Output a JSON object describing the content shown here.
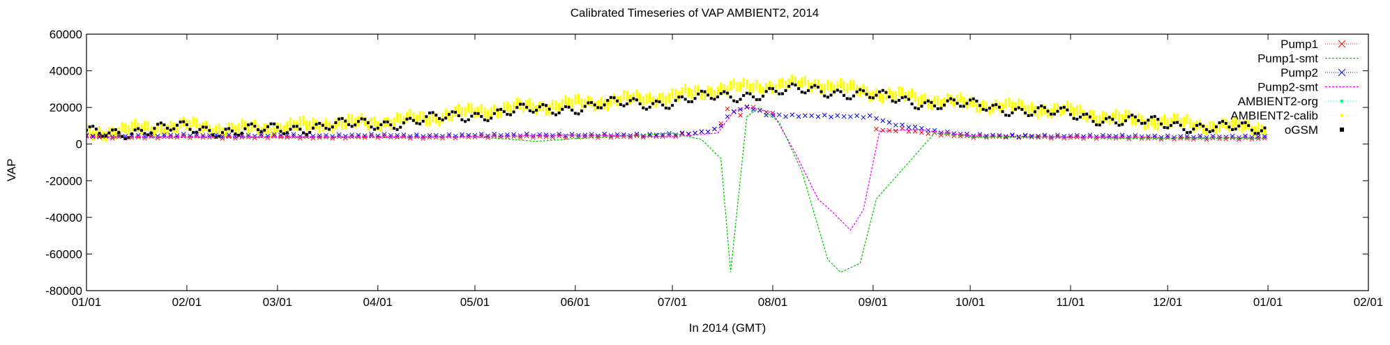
{
  "chart_data": {
    "type": "line",
    "title": "Calibrated Timeseries of VAP AMBIENT2, 2014",
    "xlabel": "In 2014 (GMT)",
    "ylabel": "VAP",
    "xlim": [
      "2014-01-01",
      "2015-02-01"
    ],
    "ylim": [
      -80000,
      60000
    ],
    "grid": false,
    "legend_position": "top-right",
    "x_ticks": [
      "01/01",
      "02/01",
      "03/01",
      "04/01",
      "05/01",
      "06/01",
      "07/01",
      "08/01",
      "09/01",
      "10/01",
      "11/01",
      "12/01",
      "01/01",
      "02/01"
    ],
    "y_ticks": [
      "60000",
      "40000",
      "20000",
      "0",
      "-20000",
      "-40000",
      "-60000",
      "-80000"
    ],
    "series": [
      {
        "name": "Pump1",
        "color": "#ff0000",
        "marker": "x",
        "x": [
          "2014-01-01",
          "2014-01-15",
          "2014-02-01",
          "2014-02-15",
          "2014-03-01",
          "2014-03-15",
          "2014-04-01",
          "2014-04-15",
          "2014-05-01",
          "2014-05-15",
          "2014-06-01",
          "2014-06-15",
          "2014-07-01",
          "2014-07-08",
          "2014-07-15",
          "2014-07-18",
          "2014-07-22",
          "2014-07-25",
          "2014-07-28",
          "2014-08-01",
          "2014-08-15",
          "2014-09-01",
          "2014-09-05",
          "2014-09-10",
          "2014-09-15",
          "2014-10-01",
          "2014-10-15",
          "2014-11-01",
          "2014-11-15",
          "2014-12-01",
          "2014-12-15",
          "2014-12-31"
        ],
        "y": [
          4000,
          3500,
          4000,
          3500,
          4000,
          3500,
          4000,
          3500,
          4000,
          4000,
          4000,
          4000,
          4500,
          6000,
          8000,
          19000,
          16000,
          22000,
          18000,
          17000,
          null,
          9000,
          7000,
          8000,
          6500,
          4000,
          4000,
          3500,
          3500,
          3000,
          3000,
          3000
        ]
      },
      {
        "name": "Pump1-smt",
        "color": "#00cc00",
        "marker": "none",
        "x": [
          "2014-01-01",
          "2014-02-01",
          "2014-03-01",
          "2014-04-01",
          "2014-05-01",
          "2014-05-20",
          "2014-06-01",
          "2014-06-20",
          "2014-07-01",
          "2014-07-10",
          "2014-07-16",
          "2014-07-19",
          "2014-07-24",
          "2014-07-28",
          "2014-08-03",
          "2014-08-10",
          "2014-08-18",
          "2014-08-22",
          "2014-08-28",
          "2014-09-02",
          "2014-09-20",
          "2014-10-01",
          "2014-11-01",
          "2014-12-01",
          "2014-12-31"
        ],
        "y": [
          3500,
          3500,
          3500,
          3500,
          4000,
          1500,
          3000,
          5000,
          6000,
          2500,
          -8000,
          -70000,
          15000,
          20000,
          12000,
          -15000,
          -63000,
          -70000,
          -65000,
          -30000,
          6000,
          4000,
          3500,
          3000,
          3000
        ]
      },
      {
        "name": "Pump2",
        "color": "#0000ff",
        "marker": "x",
        "x": [
          "2014-01-01",
          "2014-01-15",
          "2014-02-01",
          "2014-02-15",
          "2014-03-01",
          "2014-03-15",
          "2014-04-01",
          "2014-04-15",
          "2014-05-01",
          "2014-05-15",
          "2014-06-01",
          "2014-06-15",
          "2014-06-25",
          "2014-07-08",
          "2014-07-15",
          "2014-07-19",
          "2014-07-23",
          "2014-07-27",
          "2014-07-30",
          "2014-08-05",
          "2014-09-01",
          "2014-09-05",
          "2014-09-10",
          "2014-09-15",
          "2014-09-20",
          "2014-10-01",
          "2014-10-15",
          "2014-11-01",
          "2014-11-15",
          "2014-12-01",
          "2014-12-15",
          "2014-12-31"
        ],
        "y": [
          4500,
          4500,
          5000,
          4500,
          5000,
          4500,
          5000,
          4500,
          5000,
          5000,
          5000,
          5000,
          5000,
          6000,
          8000,
          17000,
          20000,
          19000,
          16000,
          15500,
          15000,
          12000,
          10000,
          9000,
          7000,
          5000,
          4500,
          4500,
          4500,
          4000,
          4000,
          4000
        ]
      },
      {
        "name": "Pump2-smt",
        "color": "#ff00ff",
        "marker": "none",
        "x": [
          "2014-01-01",
          "2014-02-01",
          "2014-03-01",
          "2014-04-01",
          "2014-05-01",
          "2014-06-01",
          "2014-07-01",
          "2014-07-15",
          "2014-07-20",
          "2014-07-25",
          "2014-08-01",
          "2014-08-08",
          "2014-08-15",
          "2014-08-20",
          "2014-08-25",
          "2014-08-29",
          "2014-09-03",
          "2014-09-15",
          "2014-10-01",
          "2014-11-01",
          "2014-12-01",
          "2014-12-31"
        ],
        "y": [
          4000,
          4000,
          4000,
          4000,
          4000,
          5000,
          4000,
          6000,
          18000,
          20000,
          17000,
          -5000,
          -30000,
          -38000,
          -47000,
          -36000,
          7000,
          8000,
          4500,
          4000,
          3500,
          3500
        ]
      },
      {
        "name": "AMBIENT2-org",
        "color": "#00ff7f",
        "marker": "dot",
        "x": [],
        "y": []
      },
      {
        "name": "AMBIENT2-calib",
        "color": "#ffff00",
        "marker": "dot",
        "x": [
          "2014-01-01",
          "2014-01-15",
          "2014-02-01",
          "2014-02-15",
          "2014-03-01",
          "2014-03-15",
          "2014-04-01",
          "2014-04-15",
          "2014-05-01",
          "2014-05-15",
          "2014-06-01",
          "2014-06-15",
          "2014-07-01",
          "2014-07-15",
          "2014-08-01",
          "2014-08-15",
          "2014-09-01",
          "2014-09-15",
          "2014-10-01",
          "2014-10-15",
          "2014-11-01",
          "2014-11-15",
          "2014-12-01",
          "2014-12-15",
          "2014-12-31"
        ],
        "y": [
          6000,
          8000,
          10000,
          8000,
          9000,
          11000,
          12000,
          14000,
          18000,
          20000,
          22000,
          24000,
          26000,
          30000,
          32000,
          33000,
          28000,
          25000,
          22000,
          20000,
          18000,
          14000,
          12000,
          10000,
          9000
        ],
        "spread": 5000
      },
      {
        "name": "oGSM",
        "color": "#000000",
        "marker": "square",
        "x": [
          "2014-01-01",
          "2014-01-15",
          "2014-02-01",
          "2014-02-15",
          "2014-03-01",
          "2014-03-15",
          "2014-04-01",
          "2014-04-15",
          "2014-05-01",
          "2014-05-15",
          "2014-06-01",
          "2014-06-15",
          "2014-07-01",
          "2014-07-15",
          "2014-08-01",
          "2014-08-15",
          "2014-09-01",
          "2014-09-15",
          "2014-10-01",
          "2014-10-15",
          "2014-11-01",
          "2014-11-15",
          "2014-12-01",
          "2014-12-15",
          "2014-12-31"
        ],
        "y": [
          6000,
          7000,
          9000,
          7000,
          8000,
          10000,
          11000,
          13000,
          16000,
          18000,
          20000,
          22000,
          23000,
          26000,
          28000,
          30000,
          26000,
          23000,
          21000,
          19000,
          16000,
          13000,
          11000,
          9000,
          8000
        ],
        "spread": 4000
      }
    ]
  }
}
